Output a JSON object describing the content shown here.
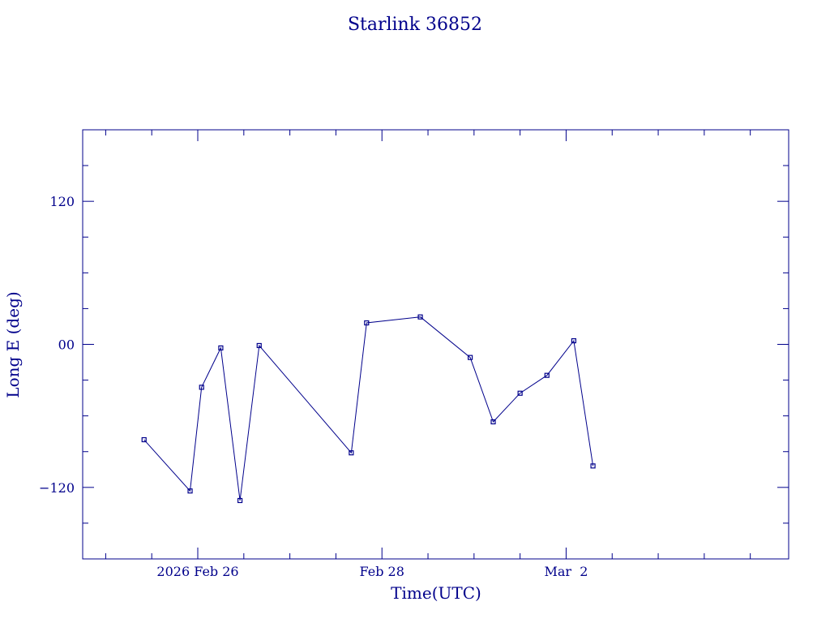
{
  "chart_data": {
    "type": "line",
    "title": "Starlink 36852",
    "xlabel": "Time(UTC)",
    "ylabel": "Long E (deg)",
    "color": "#00008b",
    "x_range": [
      "2026-02-24T18:00:00Z",
      "2026-03-04T10:00:00Z"
    ],
    "y_range": [
      -180,
      180
    ],
    "y_ticks": [
      {
        "value": 120,
        "label": "120"
      },
      {
        "value": 0,
        "label": "00"
      },
      {
        "value": -120,
        "label": "−120"
      }
    ],
    "y_minor_tick_step": 30,
    "x_major_ticks": [
      {
        "t": "2026-02-26T00:00:00Z",
        "label": "2026 Feb 26"
      },
      {
        "t": "2026-02-28T00:00:00Z",
        "label": "Feb 28"
      },
      {
        "t": "2026-03-02T00:00:00Z",
        "label": "Mar  2"
      }
    ],
    "x_minor_tick_hours": 12,
    "grid": false,
    "legend": "none",
    "series": [
      {
        "points": [
          {
            "t": "2026-02-25T10:00:00Z",
            "y": -80
          },
          {
            "t": "2026-02-25T22:00:00Z",
            "y": -123
          },
          {
            "t": "2026-02-26T01:00:00Z",
            "y": -36
          },
          {
            "t": "2026-02-26T06:00:00Z",
            "y": -3
          },
          {
            "t": "2026-02-26T11:00:00Z",
            "y": -131
          },
          {
            "t": "2026-02-26T16:00:00Z",
            "y": -1
          },
          {
            "t": "2026-02-27T16:00:00Z",
            "y": -91
          },
          {
            "t": "2026-02-27T20:00:00Z",
            "y": 18
          },
          {
            "t": "2026-02-28T10:00:00Z",
            "y": 23
          },
          {
            "t": "2026-02-28T23:00:00Z",
            "y": -11
          },
          {
            "t": "2026-03-01T05:00:00Z",
            "y": -65
          },
          {
            "t": "2026-03-01T12:00:00Z",
            "y": -41
          },
          {
            "t": "2026-03-01T19:00:00Z",
            "y": -26
          },
          {
            "t": "2026-03-02T02:00:00Z",
            "y": 3
          },
          {
            "t": "2026-03-02T07:00:00Z",
            "y": -102
          }
        ]
      }
    ]
  }
}
